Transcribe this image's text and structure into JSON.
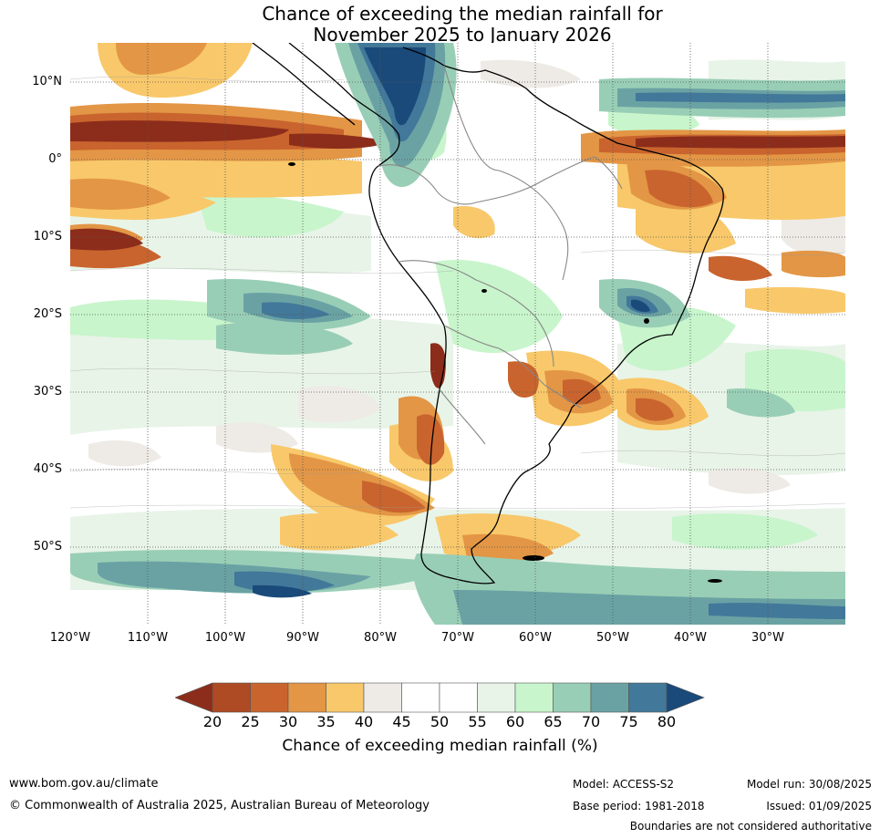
{
  "title": {
    "line1": "Chance of exceeding the median rainfall for",
    "line2": "November 2025 to January 2026"
  },
  "map": {
    "lat_labels": [
      "10°N",
      "0°",
      "10°S",
      "20°S",
      "30°S",
      "40°S",
      "50°S"
    ],
    "lon_labels": [
      "120°W",
      "110°W",
      "100°W",
      "90°W",
      "80°W",
      "70°W",
      "60°W",
      "50°W",
      "40°W",
      "30°W"
    ],
    "extent": {
      "lon": [
        -120,
        -20
      ],
      "lat": [
        -60,
        15
      ]
    },
    "grid": "dotted"
  },
  "colorbar": {
    "ticks": [
      "20",
      "25",
      "30",
      "35",
      "40",
      "45",
      "50",
      "55",
      "60",
      "65",
      "70",
      "75",
      "80"
    ],
    "colors": [
      "#8c2d1b",
      "#ae4a24",
      "#c9642e",
      "#e39645",
      "#f8c86a",
      "#eeebe6",
      "#ffffff",
      "#ffffff",
      "#e8f4e8",
      "#c8f5cc",
      "#99ceb6",
      "#6aa2a4",
      "#427899",
      "#1a4a7a"
    ],
    "label": "Chance of exceeding median rainfall (%)"
  },
  "footer": {
    "website": "www.bom.gov.au/climate",
    "copyright": "© Commonwealth of Australia 2025, Australian Bureau of Meteorology",
    "model": "Model: ACCESS-S2",
    "base_period": "Base period: 1981-2018",
    "model_run": "Model run: 30/08/2025",
    "issued": "Issued: 01/09/2025",
    "disclaimer": "Boundaries are not considered authoritative"
  }
}
